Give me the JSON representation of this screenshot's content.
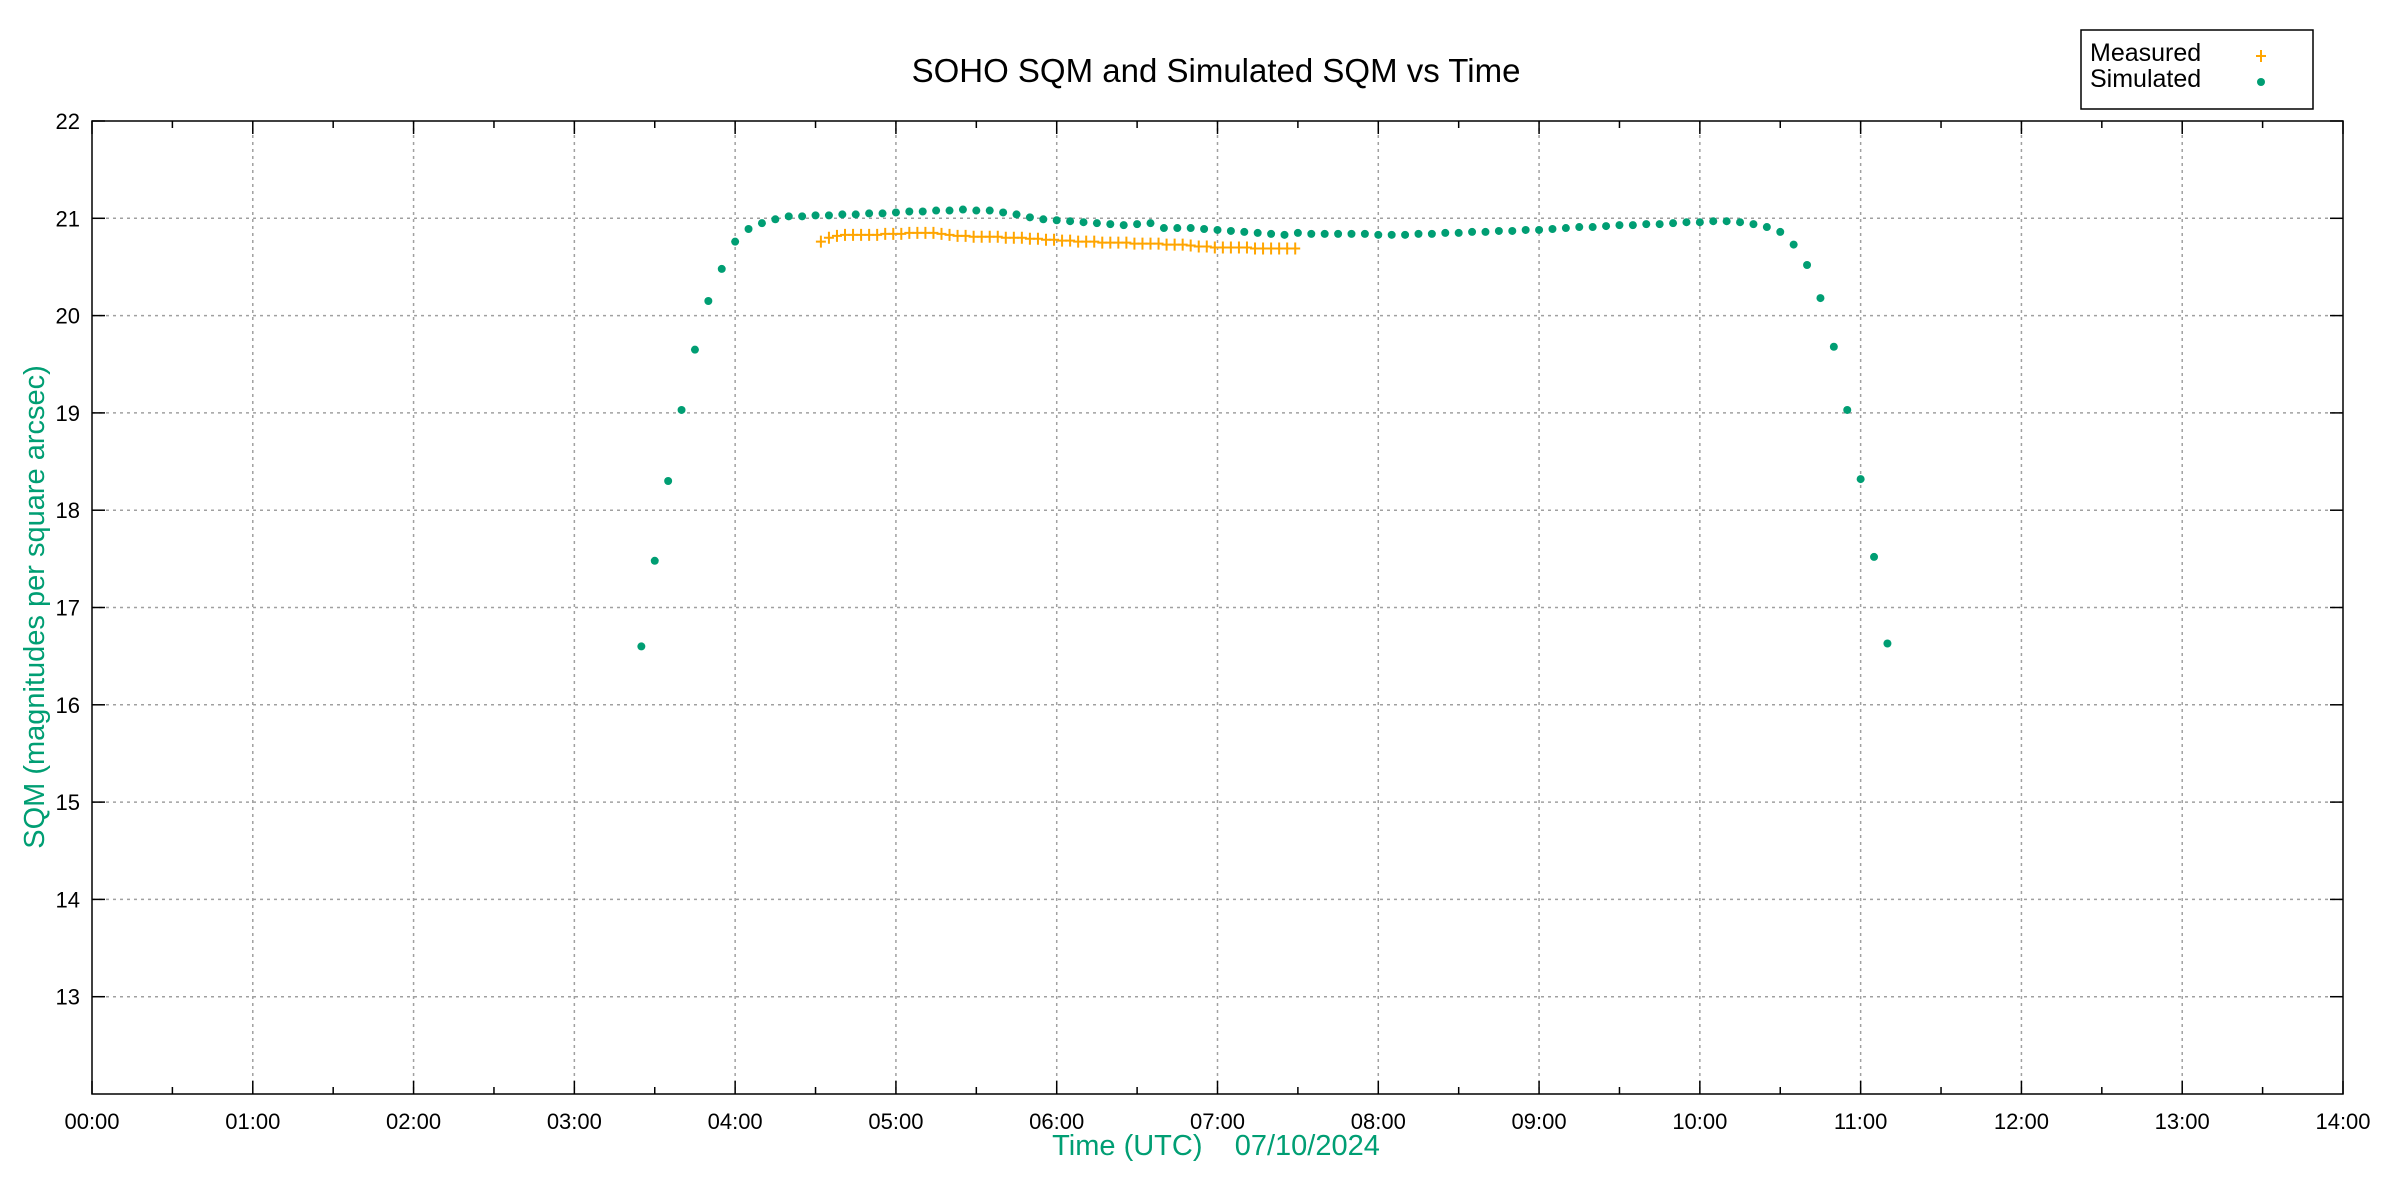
{
  "chart_data": {
    "type": "scatter",
    "title": "SOHO SQM and Simulated SQM vs Time",
    "xlabel": "Time (UTC)    07/10/2024",
    "ylabel": "SQM (magnitudes per square arcsec)",
    "xlim": [
      "00:00",
      "14:00"
    ],
    "ylim": [
      12,
      22
    ],
    "x_ticks": [
      "00:00",
      "01:00",
      "02:00",
      "03:00",
      "04:00",
      "05:00",
      "06:00",
      "07:00",
      "08:00",
      "09:00",
      "10:00",
      "11:00",
      "12:00",
      "13:00",
      "14:00"
    ],
    "y_ticks": [
      13,
      14,
      15,
      16,
      17,
      18,
      19,
      20,
      21,
      22
    ],
    "grid": true,
    "legend_position": "top-right",
    "axis_label_color": "#009E73",
    "series": [
      {
        "name": "Measured",
        "marker": "plus",
        "color": "#FFA500",
        "x": [
          "04:32",
          "04:35",
          "04:38",
          "04:41",
          "04:44",
          "04:47",
          "04:50",
          "04:53",
          "04:56",
          "04:59",
          "05:02",
          "05:05",
          "05:08",
          "05:11",
          "05:14",
          "05:17",
          "05:20",
          "05:23",
          "05:26",
          "05:29",
          "05:32",
          "05:35",
          "05:38",
          "05:41",
          "05:44",
          "05:47",
          "05:50",
          "05:53",
          "05:56",
          "05:59",
          "06:02",
          "06:05",
          "06:08",
          "06:11",
          "06:14",
          "06:17",
          "06:20",
          "06:23",
          "06:26",
          "06:29",
          "06:32",
          "06:35",
          "06:38",
          "06:41",
          "06:44",
          "06:47",
          "06:50",
          "06:53",
          "06:56",
          "06:59",
          "07:02",
          "07:05",
          "07:08",
          "07:11",
          "07:14",
          "07:17",
          "07:20",
          "07:23",
          "07:26",
          "07:29"
        ],
        "y": [
          20.76,
          20.8,
          20.82,
          20.83,
          20.83,
          20.83,
          20.83,
          20.83,
          20.84,
          20.84,
          20.84,
          20.85,
          20.85,
          20.85,
          20.85,
          20.84,
          20.83,
          20.82,
          20.82,
          20.81,
          20.81,
          20.81,
          20.81,
          20.8,
          20.8,
          20.8,
          20.79,
          20.79,
          20.78,
          20.78,
          20.77,
          20.77,
          20.76,
          20.76,
          20.76,
          20.75,
          20.75,
          20.75,
          20.75,
          20.74,
          20.74,
          20.74,
          20.74,
          20.73,
          20.73,
          20.73,
          20.72,
          20.71,
          20.71,
          20.7,
          20.7,
          20.7,
          20.7,
          20.7,
          20.69,
          20.69,
          20.69,
          20.69,
          20.69,
          20.69
        ]
      },
      {
        "name": "Simulated",
        "marker": "dot",
        "color": "#009E73",
        "x": [
          "03:25",
          "03:30",
          "03:35",
          "03:40",
          "03:45",
          "03:50",
          "03:55",
          "04:00",
          "04:05",
          "04:10",
          "04:15",
          "04:20",
          "04:25",
          "04:30",
          "04:35",
          "04:40",
          "04:45",
          "04:50",
          "04:55",
          "05:00",
          "05:05",
          "05:10",
          "05:15",
          "05:20",
          "05:25",
          "05:30",
          "05:35",
          "05:40",
          "05:45",
          "05:50",
          "05:55",
          "06:00",
          "06:05",
          "06:10",
          "06:15",
          "06:20",
          "06:25",
          "06:30",
          "06:35",
          "06:40",
          "06:45",
          "06:50",
          "06:55",
          "07:00",
          "07:05",
          "07:10",
          "07:15",
          "07:20",
          "07:25",
          "07:30",
          "07:35",
          "07:40",
          "07:45",
          "07:50",
          "07:55",
          "08:00",
          "08:05",
          "08:10",
          "08:15",
          "08:20",
          "08:25",
          "08:30",
          "08:35",
          "08:40",
          "08:45",
          "08:50",
          "08:55",
          "09:00",
          "09:05",
          "09:10",
          "09:15",
          "09:20",
          "09:25",
          "09:30",
          "09:35",
          "09:40",
          "09:45",
          "09:50",
          "09:55",
          "10:00",
          "10:05",
          "10:10",
          "10:15",
          "10:20",
          "10:25",
          "10:30",
          "10:35",
          "10:40",
          "10:45",
          "10:50",
          "10:55",
          "11:00",
          "11:05",
          "11:10"
        ],
        "y": [
          16.6,
          17.48,
          18.3,
          19.03,
          19.65,
          20.15,
          20.48,
          20.76,
          20.89,
          20.95,
          20.99,
          21.02,
          21.02,
          21.03,
          21.03,
          21.04,
          21.04,
          21.05,
          21.05,
          21.06,
          21.07,
          21.07,
          21.08,
          21.08,
          21.09,
          21.08,
          21.08,
          21.06,
          21.04,
          21.01,
          20.99,
          20.98,
          20.97,
          20.96,
          20.95,
          20.94,
          20.93,
          20.94,
          20.95,
          20.9,
          20.9,
          20.9,
          20.89,
          20.88,
          20.87,
          20.86,
          20.85,
          20.84,
          20.83,
          20.85,
          20.84,
          20.84,
          20.84,
          20.84,
          20.84,
          20.83,
          20.83,
          20.83,
          20.84,
          20.84,
          20.85,
          20.85,
          20.86,
          20.86,
          20.87,
          20.87,
          20.88,
          20.88,
          20.89,
          20.9,
          20.91,
          20.91,
          20.92,
          20.93,
          20.93,
          20.94,
          20.94,
          20.95,
          20.96,
          20.96,
          20.97,
          20.97,
          20.96,
          20.94,
          20.91,
          20.86,
          20.73,
          20.52,
          20.18,
          19.68,
          19.03,
          18.32,
          17.52,
          16.63
        ]
      }
    ]
  }
}
